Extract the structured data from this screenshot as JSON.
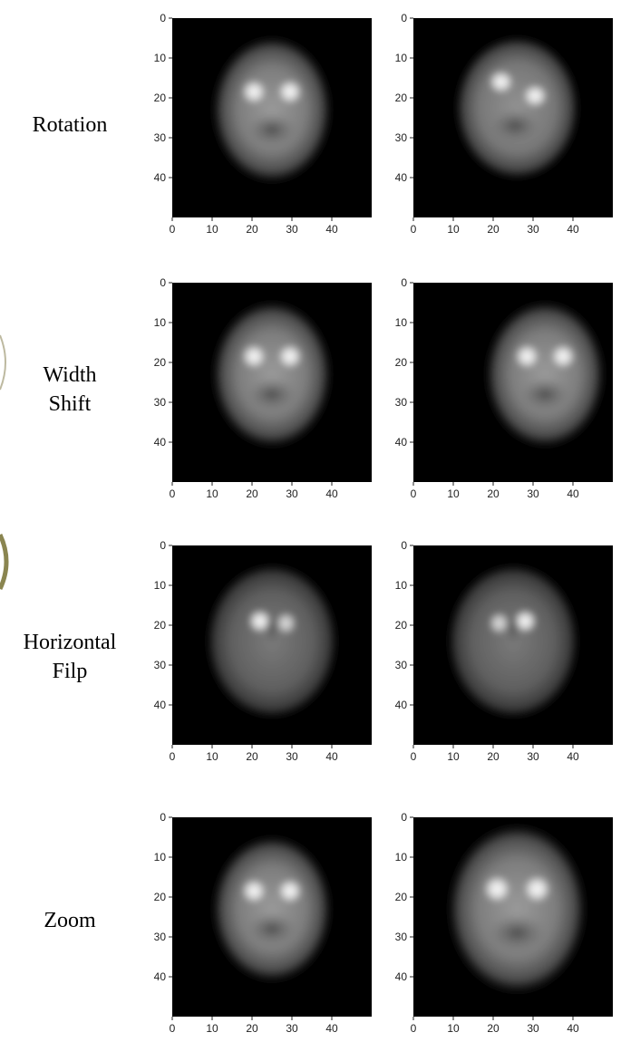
{
  "rows": [
    {
      "label_lines": [
        "Rotation"
      ],
      "augmented_blobs": "rotation"
    },
    {
      "label_lines": [
        "Width",
        "Shift"
      ],
      "augmented_blobs": "shift"
    },
    {
      "label_lines": [
        "Horizontal",
        "Filp"
      ],
      "augmented_blobs": "flip"
    },
    {
      "label_lines": [
        "Zoom"
      ],
      "augmented_blobs": "zoom"
    }
  ],
  "axis": {
    "x_ticks": [
      "0",
      "10",
      "20",
      "30",
      "40"
    ],
    "y_ticks": [
      "0",
      "10",
      "20",
      "30",
      "40"
    ],
    "x_tick_values": [
      0,
      10,
      20,
      30,
      40
    ],
    "y_tick_values": [
      0,
      10,
      20,
      30,
      40
    ],
    "range": [
      0,
      50
    ]
  },
  "colors": {
    "plot_bg": "#000000",
    "label": "#000000",
    "decor": "#8a8550"
  }
}
